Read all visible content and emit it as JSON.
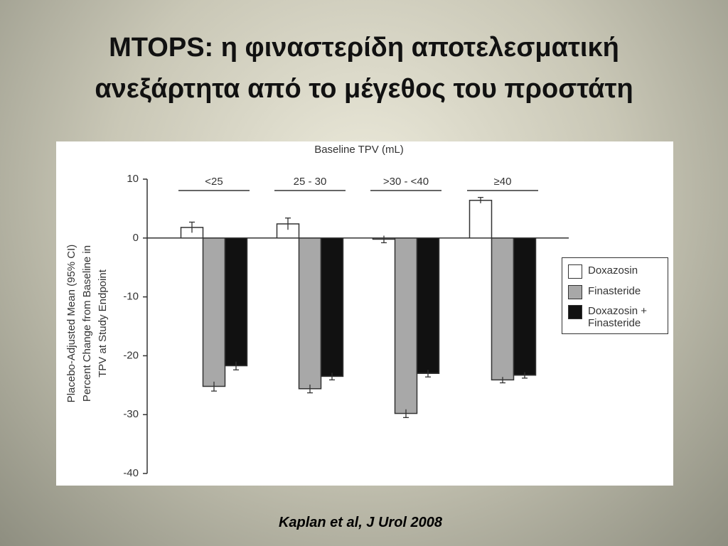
{
  "slide_title": [
    "MTOPS: η φιναστερίδη αποτελεσματική",
    "ανεξάρτητα από το μέγεθος του προστάτη"
  ],
  "citation": "Kaplan et al, J Urol 2008",
  "chart_data": {
    "type": "bar",
    "header": "Baseline TPV (mL)",
    "ylabel": [
      "Placebo-Adjusted Mean (95% CI)",
      "Percent Change from Baseline in",
      "TPV at Study Endpoint"
    ],
    "categories": [
      "<25",
      "25 - 30",
      ">30 - <40",
      "≥40"
    ],
    "series": [
      {
        "name": "Doxazosin",
        "color": "#ffffff",
        "values": [
          1.8,
          2.4,
          -0.2,
          6.4
        ],
        "errors": [
          0.9,
          1.0,
          0.6,
          0.5
        ]
      },
      {
        "name": "Finasteride",
        "color": "#a8a8a8",
        "values": [
          -25.2,
          -25.6,
          -29.8,
          -24.1
        ],
        "errors": [
          0.8,
          0.7,
          0.7,
          0.5
        ]
      },
      {
        "name": "Doxazosin + Finasteride",
        "color": "#111111",
        "values": [
          -21.7,
          -23.5,
          -23.0,
          -23.3
        ],
        "errors": [
          0.7,
          0.6,
          0.6,
          0.5
        ]
      }
    ],
    "ylim": [
      -40,
      10
    ],
    "yticks": [
      -40,
      -30,
      -20,
      -10,
      0,
      10
    ],
    "legend": "right"
  }
}
